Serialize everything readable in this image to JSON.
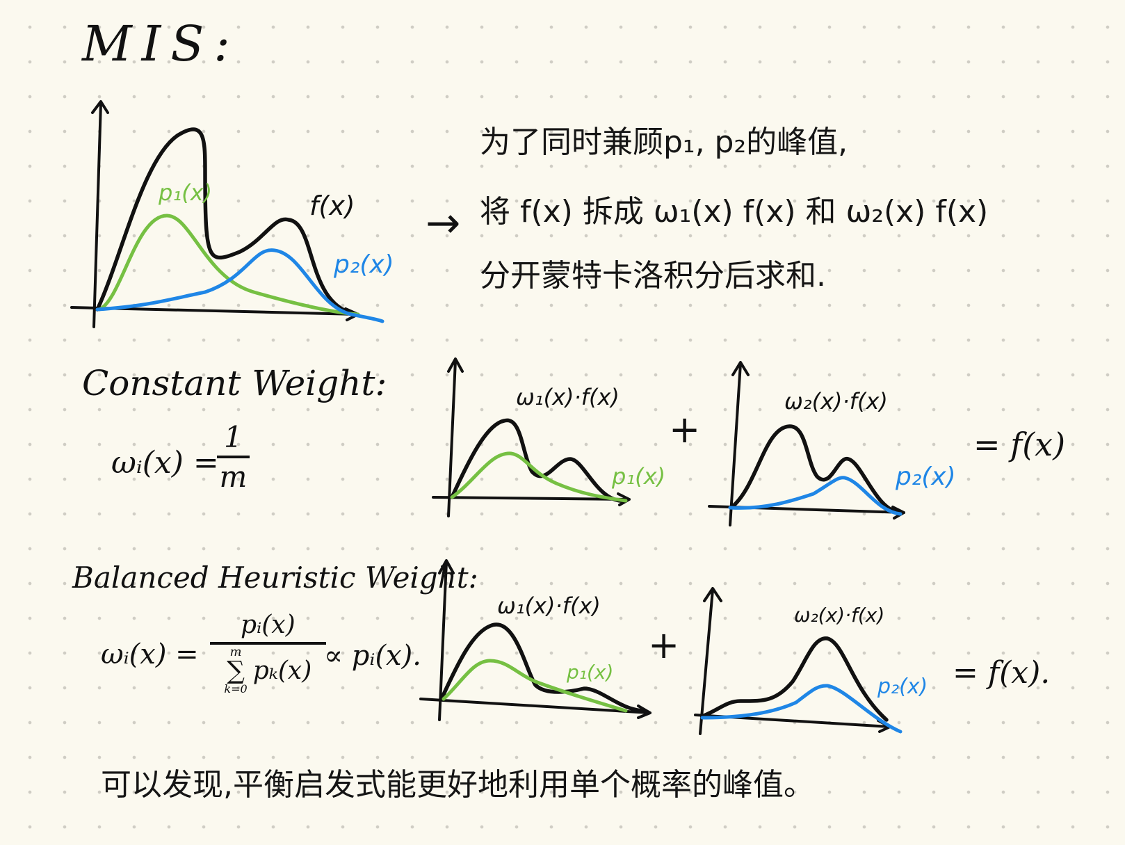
{
  "title": "MIS:",
  "intro": {
    "graph": {
      "f_label": "f(x)",
      "p1_label": "p₁(x)",
      "p2_label": "p₂(x)"
    },
    "arrow": "→",
    "lines": [
      "为了同时兼顾p₁, p₂的峰值,",
      "将 f(x) 拆成 ω₁(x) f(x) 和 ω₂(x) f(x)",
      "分开蒙特卡洛积分后求和."
    ]
  },
  "constant": {
    "heading": "Constant Weight:",
    "formula": {
      "lhs": "ωᵢ(x) =",
      "num": "1",
      "den": "m"
    },
    "graph1": {
      "title": "ω₁(x)·f(x)",
      "label": "p₁(x)"
    },
    "plus": "+",
    "graph2": {
      "title": "ω₂(x)·f(x)",
      "label": "p₂(x)"
    },
    "equals": "= f(x)"
  },
  "balanced": {
    "heading": "Balanced Heuristic Weight:",
    "formula": {
      "lhs": "ωᵢ(x) =",
      "num": "pᵢ(x)",
      "den_sum": "∑",
      "den_top": "m",
      "den_bottom": "k=0",
      "den_term": "pₖ(x)",
      "tail": "∝ pᵢ(x)."
    },
    "graph1": {
      "title": "ω₁(x)·f(x)",
      "label": "p₁(x)"
    },
    "plus": "+",
    "graph2": {
      "title": "ω₂(x)·f(x)",
      "label": "p₂(x)"
    },
    "equals": "= f(x)."
  },
  "conclusion": "可以发现,平衡启发式能更好地利用单个概率的峰值。",
  "colors": {
    "ink": "#111111",
    "p1": "#76c043",
    "p2": "#1f86e6",
    "paper": "#fbf9ef"
  }
}
